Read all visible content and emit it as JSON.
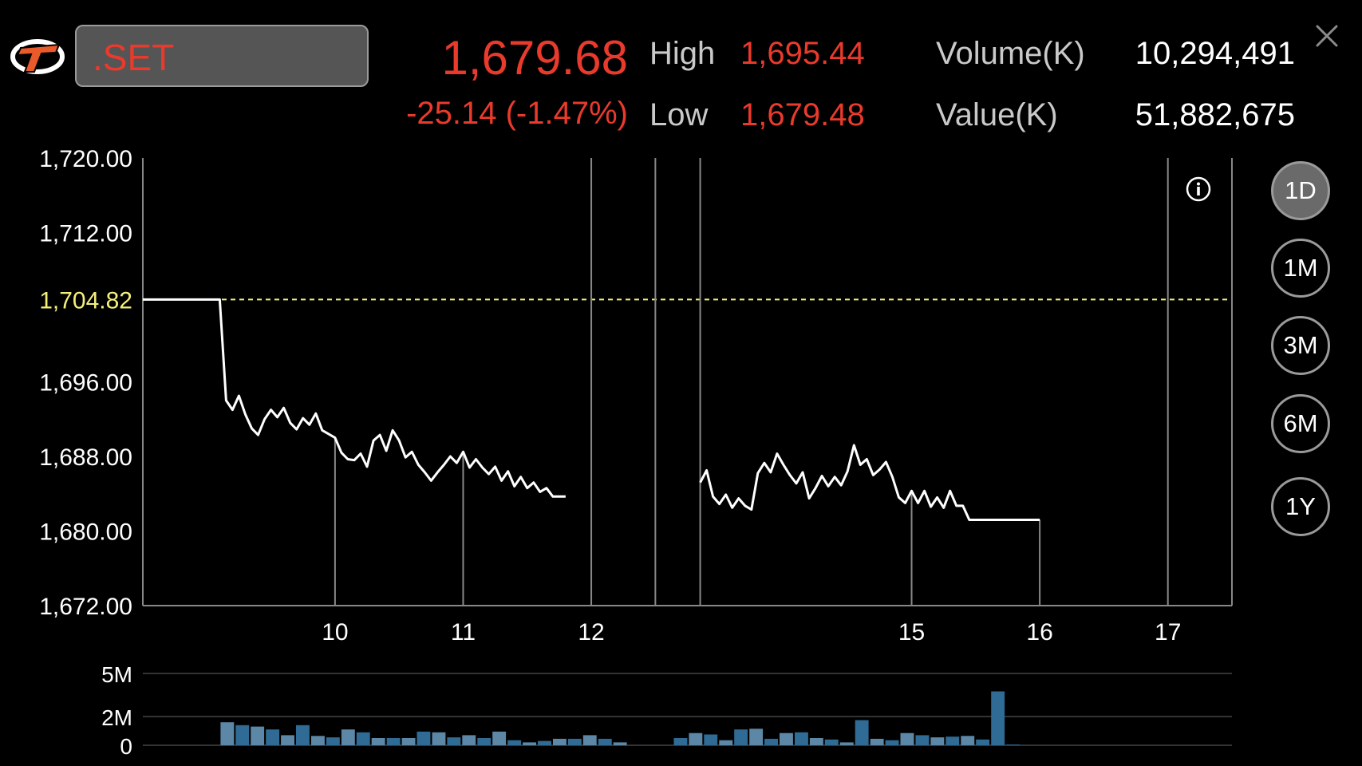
{
  "header": {
    "symbol": ".SET",
    "last_price": "1,679.68",
    "change": "-25.14 (-1.47%)",
    "high_label": "High",
    "high_value": "1,695.44",
    "low_label": "Low",
    "low_value": "1,679.48",
    "volume_label": "Volume(K)",
    "volume_value": "10,294,491",
    "value_label": "Value(K)",
    "value_value": "51,882,675"
  },
  "range_buttons": [
    {
      "label": "1D",
      "active": true
    },
    {
      "label": "1M",
      "active": false
    },
    {
      "label": "3M",
      "active": false
    },
    {
      "label": "6M",
      "active": false
    },
    {
      "label": "1Y",
      "active": false
    }
  ],
  "colors": {
    "accent_red": "#ea3a2c",
    "reference_yellow": "#f5f07a",
    "volume_bar": "#2f6b94",
    "volume_bar_light": "#5d87a6"
  },
  "icons": [
    "app-logo-icon",
    "close-icon",
    "info-icon"
  ],
  "chart_data": [
    {
      "type": "line",
      "title": "",
      "xlabel": "",
      "ylabel": "",
      "ylim": [
        1672,
        1720
      ],
      "xlim": [
        8.5,
        17
      ],
      "y_ticks": [
        "1,720.00",
        "1,712.00",
        "1,696.00",
        "1,688.00",
        "1,680.00",
        "1,672.00"
      ],
      "reference_line": {
        "value": 1704.82,
        "label": "1,704.82"
      },
      "x_ticks": [
        {
          "x": 10,
          "label": "10"
        },
        {
          "x": 11,
          "label": "11"
        },
        {
          "x": 12,
          "label": "12"
        },
        {
          "x": 14.5,
          "label": "15"
        },
        {
          "x": 15.5,
          "label": "16"
        },
        {
          "x": 16.5,
          "label": "17"
        }
      ],
      "session_break": [
        12.5,
        12.85
      ],
      "grid": true,
      "series": [
        {
          "points": [
            [
              8.5,
              1704.82
            ],
            [
              9.1,
              1704.82
            ],
            [
              9.15,
              1694
            ],
            [
              9.2,
              1693
            ],
            [
              9.25,
              1694.5
            ],
            [
              9.3,
              1692.5
            ],
            [
              9.35,
              1691
            ],
            [
              9.4,
              1690.3
            ],
            [
              9.45,
              1692
            ],
            [
              9.5,
              1693
            ],
            [
              9.55,
              1692.2
            ],
            [
              9.6,
              1693.2
            ],
            [
              9.65,
              1691.6
            ],
            [
              9.7,
              1690.9
            ],
            [
              9.75,
              1692.1
            ],
            [
              9.8,
              1691.4
            ],
            [
              9.85,
              1692.6
            ],
            [
              9.9,
              1690.8
            ],
            [
              9.95,
              1690.4
            ],
            [
              10.0,
              1690.0
            ],
            [
              10.05,
              1688.4
            ],
            [
              10.1,
              1687.7
            ],
            [
              10.15,
              1687.6
            ],
            [
              10.2,
              1688.3
            ],
            [
              10.25,
              1686.9
            ],
            [
              10.3,
              1689.7
            ],
            [
              10.35,
              1690.3
            ],
            [
              10.4,
              1688.6
            ],
            [
              10.45,
              1690.8
            ],
            [
              10.5,
              1689.7
            ],
            [
              10.55,
              1687.9
            ],
            [
              10.6,
              1688.5
            ],
            [
              10.65,
              1687.1
            ],
            [
              10.7,
              1686.3
            ],
            [
              10.75,
              1685.4
            ],
            [
              10.8,
              1686.3
            ],
            [
              10.85,
              1687.1
            ],
            [
              10.9,
              1688
            ],
            [
              10.95,
              1687.3
            ],
            [
              11.0,
              1688.5
            ],
            [
              11.05,
              1686.8
            ],
            [
              11.1,
              1687.7
            ],
            [
              11.15,
              1686.8
            ],
            [
              11.2,
              1686.1
            ],
            [
              11.25,
              1686.9
            ],
            [
              11.3,
              1685.4
            ],
            [
              11.35,
              1686.4
            ],
            [
              11.4,
              1684.8
            ],
            [
              11.45,
              1685.8
            ],
            [
              11.5,
              1684.6
            ],
            [
              11.55,
              1685.2
            ],
            [
              11.6,
              1684.2
            ],
            [
              11.65,
              1684.6
            ],
            [
              11.7,
              1683.7
            ],
            [
              11.75,
              1683.7
            ],
            [
              11.8,
              1683.7
            ]
          ]
        },
        {
          "points": [
            [
              12.85,
              1685.2
            ],
            [
              12.9,
              1686.5
            ],
            [
              12.95,
              1683.7
            ],
            [
              13.0,
              1682.9
            ],
            [
              13.05,
              1683.9
            ],
            [
              13.1,
              1682.5
            ],
            [
              13.15,
              1683.5
            ],
            [
              13.2,
              1682.7
            ],
            [
              13.25,
              1682.3
            ],
            [
              13.3,
              1686.2
            ],
            [
              13.35,
              1687.3
            ],
            [
              13.4,
              1686.3
            ],
            [
              13.45,
              1688.3
            ],
            [
              13.5,
              1687.1
            ],
            [
              13.55,
              1686
            ],
            [
              13.6,
              1685.1
            ],
            [
              13.65,
              1686.3
            ],
            [
              13.7,
              1683.5
            ],
            [
              13.75,
              1684.6
            ],
            [
              13.8,
              1685.9
            ],
            [
              13.85,
              1684.8
            ],
            [
              13.9,
              1685.8
            ],
            [
              13.95,
              1684.9
            ],
            [
              14.0,
              1686.4
            ],
            [
              14.05,
              1689.2
            ],
            [
              14.1,
              1687.1
            ],
            [
              14.15,
              1687.7
            ],
            [
              14.2,
              1686
            ],
            [
              14.25,
              1686.6
            ],
            [
              14.3,
              1687.4
            ],
            [
              14.35,
              1685.8
            ],
            [
              14.4,
              1683.6
            ],
            [
              14.45,
              1683.0
            ],
            [
              14.5,
              1684.3
            ],
            [
              14.55,
              1683.0
            ],
            [
              14.6,
              1684.3
            ],
            [
              14.65,
              1682.6
            ],
            [
              14.7,
              1683.6
            ],
            [
              14.75,
              1682.5
            ],
            [
              14.8,
              1684.3
            ],
            [
              14.85,
              1682.7
            ],
            [
              14.9,
              1682.7
            ],
            [
              14.95,
              1681.2
            ],
            [
              15.5,
              1681.2
            ]
          ]
        }
      ]
    },
    {
      "type": "bar",
      "title": "",
      "xlabel": "",
      "ylabel": "",
      "ylim": [
        0,
        5
      ],
      "y_ticks": [
        "5M",
        "2M",
        "0"
      ],
      "values": [
        1.6,
        1.4,
        1.3,
        1.1,
        0.7,
        1.4,
        0.65,
        0.55,
        1.1,
        0.9,
        0.5,
        0.5,
        0.5,
        0.95,
        0.9,
        0.55,
        0.7,
        0.5,
        0.95,
        0.35,
        0.2,
        0.3,
        0.45,
        0.45,
        0.7,
        0.45,
        0.2,
        0,
        0,
        0,
        0.5,
        0.85,
        0.75,
        0.35,
        1.1,
        1.15,
        0.45,
        0.85,
        0.9,
        0.5,
        0.4,
        0.2,
        1.75,
        0.45,
        0.35,
        0.85,
        0.7,
        0.55,
        0.6,
        0.65,
        0.4,
        3.75,
        0.05
      ],
      "light_bars": [
        0,
        2,
        4,
        6,
        8,
        10,
        12,
        14,
        16,
        18,
        20,
        22,
        24,
        26,
        31,
        33,
        35,
        37,
        39,
        41,
        43,
        45,
        47,
        49
      ]
    }
  ]
}
